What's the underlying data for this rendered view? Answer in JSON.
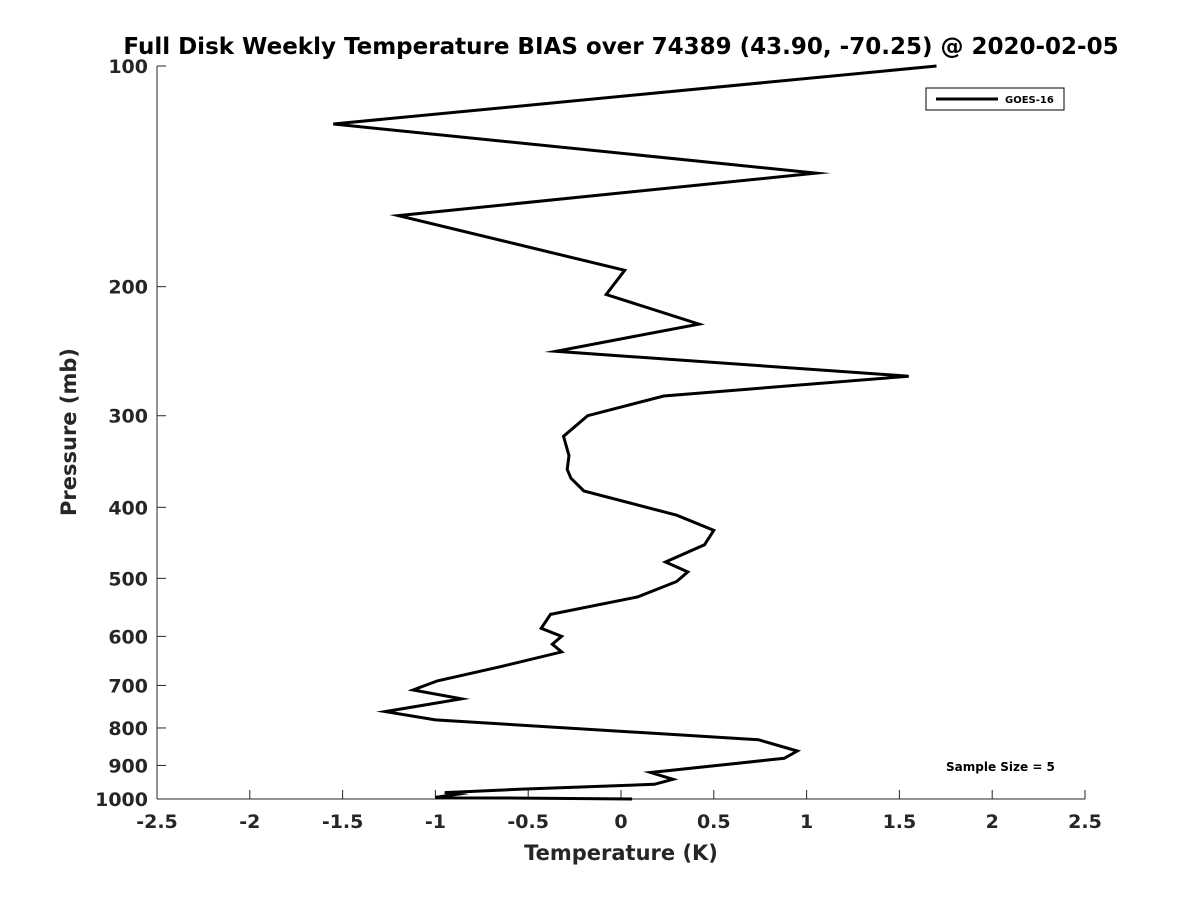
{
  "chart_data": {
    "type": "line",
    "title": "Full Disk Weekly Temperature BIAS over 74389 (43.90, -70.25) @ 2020-02-05",
    "xlabel": "Temperature (K)",
    "ylabel": "Pressure (mb)",
    "xlim": [
      -2.5,
      2.5
    ],
    "ylim": [
      100,
      1000
    ],
    "y_scale": "log",
    "y_reversed": true,
    "x_ticks": [
      -2.5,
      -2,
      -1.5,
      -1,
      -0.5,
      0,
      0.5,
      1,
      1.5,
      2,
      2.5
    ],
    "x_tick_labels": [
      "-2.5",
      "-2",
      "-1.5",
      "-1",
      "-0.5",
      "0",
      "0.5",
      "1",
      "1.5",
      "2",
      "2.5"
    ],
    "y_ticks": [
      100,
      200,
      300,
      400,
      500,
      600,
      700,
      800,
      900,
      1000
    ],
    "y_tick_labels": [
      "100",
      "200",
      "300",
      "400",
      "500",
      "600",
      "700",
      "800",
      "900",
      "1000"
    ],
    "grid": false,
    "legend_position": "top-right",
    "annotation": "Sample Size = 5",
    "series": [
      {
        "name": "GOES-16",
        "color": "#000000",
        "x": [
          1.7,
          -1.55,
          1.05,
          -1.2,
          0.02,
          -0.08,
          0.42,
          -0.35,
          1.55,
          0.23,
          -0.18,
          -0.31,
          -0.28,
          -0.29,
          -0.27,
          -0.2,
          0.3,
          0.5,
          0.45,
          0.24,
          0.36,
          0.3,
          0.09,
          -0.38,
          -0.43,
          -0.32,
          -0.37,
          -0.32,
          -0.65,
          -0.99,
          -1.12,
          -0.86,
          -1.27,
          -1.0,
          0.74,
          0.95,
          0.88,
          0.16,
          0.28,
          0.18,
          -0.55,
          -0.95,
          -0.88,
          -1.0,
          0.06
        ],
        "y": [
          100,
          120,
          140,
          160,
          190,
          205,
          225,
          245,
          265,
          282,
          300,
          320,
          340,
          355,
          365,
          380,
          410,
          430,
          450,
          475,
          490,
          505,
          530,
          560,
          585,
          600,
          615,
          630,
          660,
          690,
          710,
          730,
          760,
          780,
          830,
          860,
          880,
          920,
          940,
          955,
          970,
          980,
          985,
          995,
          1000
        ]
      }
    ]
  }
}
